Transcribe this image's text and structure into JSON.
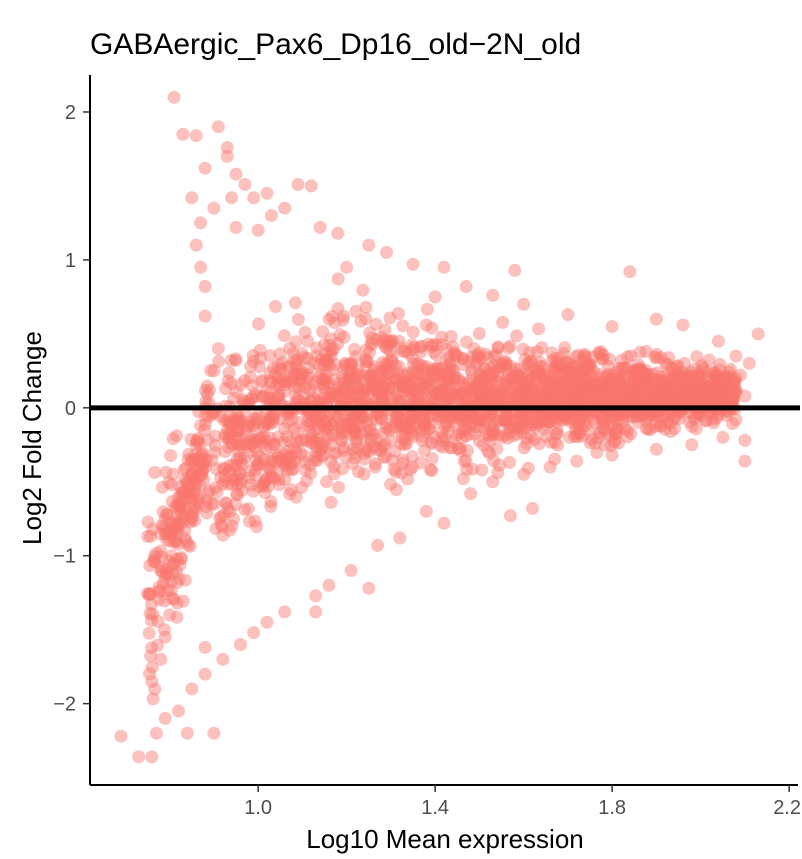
{
  "chart_data": {
    "type": "scatter",
    "title": "GABAergic_Pax6_Dp16_old−2N_old",
    "xlabel": "Log10 Mean expression",
    "ylabel": "Log2 Fold Change",
    "xlim": [
      0.62,
      2.22
    ],
    "ylim": [
      -2.55,
      2.25
    ],
    "x_ticks": [
      1.0,
      1.4,
      1.8,
      2.2
    ],
    "x_tick_labels": [
      "1.0",
      "1.4",
      "1.8",
      "2.2"
    ],
    "y_ticks": [
      -2,
      -1,
      0,
      1,
      2
    ],
    "y_tick_labels": [
      "−2",
      "−1",
      "0",
      "1",
      "2"
    ],
    "reference_line_y": 0,
    "grid": false,
    "legend": "none",
    "point_color": "#f8766d",
    "ref_line_color": "#000000",
    "series": [
      {
        "points": [
          [
            0.81,
            2.1
          ],
          [
            0.91,
            1.9
          ],
          [
            0.83,
            1.85
          ],
          [
            0.86,
            1.84
          ],
          [
            0.93,
            1.76
          ],
          [
            0.93,
            1.7
          ],
          [
            0.88,
            1.62
          ],
          [
            0.95,
            1.58
          ],
          [
            0.97,
            1.51
          ],
          [
            1.09,
            1.51
          ],
          [
            1.12,
            1.5
          ],
          [
            1.02,
            1.45
          ],
          [
            0.85,
            1.42
          ],
          [
            0.99,
            1.42
          ],
          [
            1.06,
            1.35
          ],
          [
            1.03,
            1.3
          ],
          [
            1.14,
            1.22
          ],
          [
            1.18,
            1.18
          ],
          [
            1.25,
            1.1
          ],
          [
            1.29,
            1.05
          ],
          [
            1.35,
            0.97
          ],
          [
            1.42,
            0.95
          ],
          [
            1.58,
            0.93
          ],
          [
            1.84,
            0.92
          ],
          [
            1.47,
            0.82
          ],
          [
            1.53,
            0.76
          ],
          [
            1.6,
            0.7
          ],
          [
            1.7,
            0.63
          ],
          [
            1.9,
            0.6
          ],
          [
            1.96,
            0.56
          ],
          [
            2.04,
            0.45
          ],
          [
            2.13,
            0.5
          ],
          [
            2.08,
            0.35
          ],
          [
            2.11,
            0.3
          ],
          [
            2.09,
            0.22
          ],
          [
            2.1,
            0.08
          ],
          [
            2.08,
            -0.08
          ],
          [
            2.05,
            -0.2
          ],
          [
            2.1,
            -0.22
          ],
          [
            2.1,
            -0.36
          ],
          [
            1.98,
            -0.25
          ],
          [
            1.9,
            -0.28
          ],
          [
            1.8,
            -0.32
          ],
          [
            1.72,
            -0.36
          ],
          [
            1.66,
            -0.4
          ],
          [
            1.6,
            -0.45
          ],
          [
            1.53,
            -0.5
          ],
          [
            1.48,
            -0.58
          ],
          [
            1.57,
            -0.73
          ],
          [
            1.42,
            -0.78
          ],
          [
            1.38,
            -0.7
          ],
          [
            1.32,
            -0.88
          ],
          [
            1.27,
            -0.93
          ],
          [
            1.21,
            -1.1
          ],
          [
            1.16,
            -1.2
          ],
          [
            1.13,
            -1.27
          ],
          [
            1.06,
            -1.38
          ],
          [
            1.02,
            -1.45
          ],
          [
            0.99,
            -1.52
          ],
          [
            1.13,
            -1.38
          ],
          [
            0.96,
            -1.6
          ],
          [
            0.92,
            -1.7
          ],
          [
            0.88,
            -1.8
          ],
          [
            0.85,
            -1.9
          ],
          [
            0.82,
            -2.05
          ],
          [
            0.84,
            -2.2
          ],
          [
            0.79,
            -2.1
          ],
          [
            0.77,
            -2.2
          ],
          [
            0.76,
            -2.36
          ],
          [
            0.73,
            -2.36
          ],
          [
            0.69,
            -2.22
          ],
          [
            0.76,
            -1.85
          ],
          [
            0.78,
            -1.7
          ],
          [
            0.79,
            -1.55
          ],
          [
            0.8,
            -1.4
          ],
          [
            0.78,
            -1.1
          ],
          [
            0.8,
            -0.9
          ],
          [
            0.79,
            -0.75
          ],
          [
            0.82,
            -0.65
          ],
          [
            0.85,
            -0.45
          ],
          [
            0.86,
            -0.25
          ],
          [
            0.87,
            -0.12
          ],
          [
            0.88,
            0.0
          ],
          [
            0.89,
            0.12
          ],
          [
            0.9,
            0.25
          ],
          [
            0.91,
            0.4
          ],
          [
            0.88,
            0.62
          ],
          [
            0.88,
            0.82
          ],
          [
            0.87,
            0.95
          ],
          [
            0.86,
            1.1
          ],
          [
            0.87,
            1.25
          ],
          [
            0.9,
            1.35
          ],
          [
            0.94,
            1.42
          ],
          [
            0.95,
            1.22
          ],
          [
            1.0,
            1.2
          ],
          [
            1.2,
            0.95
          ],
          [
            1.4,
            0.75
          ],
          [
            1.8,
            0.55
          ],
          [
            1.62,
            -0.68
          ],
          [
            1.25,
            -1.22
          ],
          [
            0.9,
            -2.2
          ],
          [
            0.88,
            -1.62
          ]
        ]
      }
    ]
  }
}
